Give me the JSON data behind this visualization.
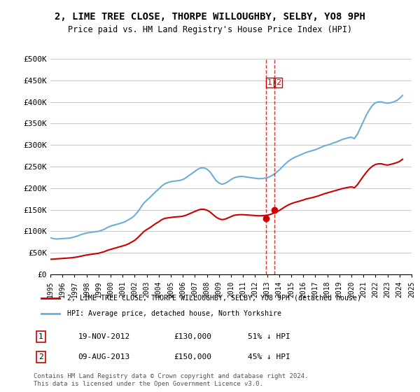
{
  "title": "2, LIME TREE CLOSE, THORPE WILLOUGHBY, SELBY, YO8 9PH",
  "subtitle": "Price paid vs. HM Land Registry's House Price Index (HPI)",
  "xlabel": "",
  "ylabel": "",
  "ylim": [
    0,
    500000
  ],
  "yticks": [
    0,
    50000,
    100000,
    150000,
    200000,
    250000,
    300000,
    350000,
    400000,
    450000,
    500000
  ],
  "ytick_labels": [
    "£0",
    "£50K",
    "£100K",
    "£150K",
    "£200K",
    "£250K",
    "£300K",
    "£350K",
    "£400K",
    "£450K",
    "£500K"
  ],
  "hpi_color": "#6baed6",
  "price_color": "#cc0000",
  "marker_color": "#cc0000",
  "vline_color": "#cc0000",
  "background_color": "#ffffff",
  "grid_color": "#cccccc",
  "legend_label_red": "2, LIME TREE CLOSE, THORPE WILLOUGHBY, SELBY, YO8 9PH (detached house)",
  "legend_label_blue": "HPI: Average price, detached house, North Yorkshire",
  "transactions": [
    {
      "num": 1,
      "date": "19-NOV-2012",
      "price": 130000,
      "pct": "51% ↓ HPI",
      "x": 2012.88
    },
    {
      "num": 2,
      "date": "09-AUG-2013",
      "price": 150000,
      "pct": "45% ↓ HPI",
      "x": 2013.6
    }
  ],
  "footnote": "Contains HM Land Registry data © Crown copyright and database right 2024.\nThis data is licensed under the Open Government Licence v3.0.",
  "hpi_data_x": [
    1995.0,
    1995.25,
    1995.5,
    1995.75,
    1996.0,
    1996.25,
    1996.5,
    1996.75,
    1997.0,
    1997.25,
    1997.5,
    1997.75,
    1998.0,
    1998.25,
    1998.5,
    1998.75,
    1999.0,
    1999.25,
    1999.5,
    1999.75,
    2000.0,
    2000.25,
    2000.5,
    2000.75,
    2001.0,
    2001.25,
    2001.5,
    2001.75,
    2002.0,
    2002.25,
    2002.5,
    2002.75,
    2003.0,
    2003.25,
    2003.5,
    2003.75,
    2004.0,
    2004.25,
    2004.5,
    2004.75,
    2005.0,
    2005.25,
    2005.5,
    2005.75,
    2006.0,
    2006.25,
    2006.5,
    2006.75,
    2007.0,
    2007.25,
    2007.5,
    2007.75,
    2008.0,
    2008.25,
    2008.5,
    2008.75,
    2009.0,
    2009.25,
    2009.5,
    2009.75,
    2010.0,
    2010.25,
    2010.5,
    2010.75,
    2011.0,
    2011.25,
    2011.5,
    2011.75,
    2012.0,
    2012.25,
    2012.5,
    2012.75,
    2013.0,
    2013.25,
    2013.5,
    2013.75,
    2014.0,
    2014.25,
    2014.5,
    2014.75,
    2015.0,
    2015.25,
    2015.5,
    2015.75,
    2016.0,
    2016.25,
    2016.5,
    2016.75,
    2017.0,
    2017.25,
    2017.5,
    2017.75,
    2018.0,
    2018.25,
    2018.5,
    2018.75,
    2019.0,
    2019.25,
    2019.5,
    2019.75,
    2020.0,
    2020.25,
    2020.5,
    2020.75,
    2021.0,
    2021.25,
    2021.5,
    2021.75,
    2022.0,
    2022.25,
    2022.5,
    2022.75,
    2023.0,
    2023.25,
    2023.5,
    2023.75,
    2024.0,
    2024.25
  ],
  "hpi_data_y": [
    85000,
    83000,
    82000,
    82500,
    83000,
    83500,
    84000,
    85000,
    87000,
    89000,
    92000,
    94000,
    96000,
    97000,
    98000,
    99000,
    100000,
    102000,
    105000,
    109000,
    112000,
    114000,
    116000,
    118000,
    120000,
    123000,
    127000,
    131000,
    137000,
    145000,
    155000,
    165000,
    172000,
    178000,
    185000,
    192000,
    198000,
    205000,
    210000,
    213000,
    215000,
    216000,
    217000,
    218000,
    220000,
    224000,
    229000,
    234000,
    239000,
    244000,
    247000,
    247000,
    244000,
    238000,
    228000,
    218000,
    212000,
    209000,
    211000,
    215000,
    220000,
    224000,
    226000,
    227000,
    227000,
    226000,
    225000,
    224000,
    223000,
    222000,
    222000,
    223000,
    224000,
    227000,
    231000,
    236000,
    242000,
    249000,
    256000,
    262000,
    267000,
    271000,
    274000,
    277000,
    280000,
    283000,
    285000,
    287000,
    289000,
    292000,
    295000,
    298000,
    300000,
    302000,
    305000,
    307000,
    310000,
    313000,
    315000,
    317000,
    318000,
    315000,
    325000,
    340000,
    355000,
    370000,
    382000,
    392000,
    398000,
    400000,
    400000,
    398000,
    397000,
    398000,
    400000,
    403000,
    408000,
    415000
  ],
  "price_data_x": [
    1995.0,
    1995.25,
    1995.5,
    1995.75,
    1996.0,
    1996.25,
    1996.5,
    1996.75,
    1997.0,
    1997.25,
    1997.5,
    1997.75,
    1998.0,
    1998.25,
    1998.5,
    1998.75,
    1999.0,
    1999.25,
    1999.5,
    1999.75,
    2000.0,
    2000.25,
    2000.5,
    2000.75,
    2001.0,
    2001.25,
    2001.5,
    2001.75,
    2002.0,
    2002.25,
    2002.5,
    2002.75,
    2003.0,
    2003.25,
    2003.5,
    2003.75,
    2004.0,
    2004.25,
    2004.5,
    2004.75,
    2005.0,
    2005.25,
    2005.5,
    2005.75,
    2006.0,
    2006.25,
    2006.5,
    2006.75,
    2007.0,
    2007.25,
    2007.5,
    2007.75,
    2008.0,
    2008.25,
    2008.5,
    2008.75,
    2009.0,
    2009.25,
    2009.5,
    2009.75,
    2010.0,
    2010.25,
    2010.5,
    2010.75,
    2011.0,
    2011.25,
    2011.5,
    2011.75,
    2012.0,
    2012.25,
    2012.5,
    2012.75,
    2013.0,
    2013.25,
    2013.5,
    2013.75,
    2014.0,
    2014.25,
    2014.5,
    2014.75,
    2015.0,
    2015.25,
    2015.5,
    2015.75,
    2016.0,
    2016.25,
    2016.5,
    2016.75,
    2017.0,
    2017.25,
    2017.5,
    2017.75,
    2018.0,
    2018.25,
    2018.5,
    2018.75,
    2019.0,
    2019.25,
    2019.5,
    2019.75,
    2020.0,
    2020.25,
    2020.5,
    2020.75,
    2021.0,
    2021.25,
    2021.5,
    2021.75,
    2022.0,
    2022.25,
    2022.5,
    2022.75,
    2023.0,
    2023.25,
    2023.5,
    2023.75,
    2024.0,
    2024.25
  ],
  "price_data_y": [
    35000,
    35500,
    36000,
    36500,
    37000,
    37500,
    38000,
    38500,
    39500,
    40500,
    42000,
    43500,
    45000,
    46000,
    47000,
    48000,
    49000,
    51000,
    53000,
    56000,
    58000,
    60000,
    62000,
    64000,
    66000,
    68000,
    71000,
    75000,
    79000,
    85000,
    92000,
    99000,
    104000,
    108000,
    113000,
    118000,
    122000,
    127000,
    130000,
    131000,
    132000,
    133000,
    133500,
    134000,
    135000,
    137000,
    140000,
    143000,
    146000,
    149000,
    151000,
    151000,
    149000,
    145000,
    139000,
    133000,
    129000,
    127000,
    128000,
    131000,
    134000,
    137000,
    138000,
    138500,
    138500,
    138000,
    137500,
    137000,
    136500,
    136000,
    136000,
    136500,
    137000,
    139000,
    141500,
    144500,
    148000,
    152500,
    157000,
    161000,
    164000,
    166500,
    168500,
    170500,
    172500,
    175000,
    176500,
    178000,
    180000,
    182000,
    184500,
    187000,
    189000,
    191000,
    193000,
    195000,
    197000,
    199000,
    200500,
    202000,
    203000,
    201000,
    208000,
    218000,
    228000,
    237000,
    245000,
    251000,
    255000,
    256500,
    256500,
    254500,
    253500,
    255000,
    257000,
    259000,
    262000,
    267000
  ]
}
